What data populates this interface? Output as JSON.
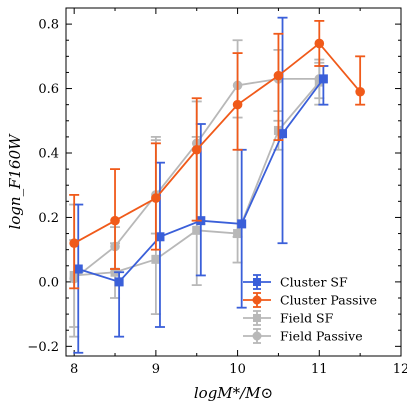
{
  "chart_data": {
    "type": "line",
    "xlabel": "logM*/M⊙",
    "ylabel": "logn_F160W",
    "xlim": [
      7.9,
      12.0
    ],
    "ylim": [
      -0.23,
      0.85
    ],
    "xticks": [
      8,
      9,
      10,
      11,
      12
    ],
    "yticks": [
      -0.2,
      0.0,
      0.2,
      0.4,
      0.6,
      0.8
    ],
    "xtick_labels": [
      "8",
      "9",
      "10",
      "11",
      "12"
    ],
    "ytick_labels": [
      "−0.2",
      "0.0",
      "0.2",
      "0.4",
      "0.6",
      "0.8"
    ],
    "legend_position": "lower-right",
    "series": [
      {
        "name": "Field SF",
        "color": "#b8b8b8",
        "marker": "square",
        "x": [
          8.0,
          8.5,
          9.0,
          9.5,
          10.0,
          10.5,
          11.0
        ],
        "y": [
          0.02,
          0.03,
          0.07,
          0.16,
          0.15,
          0.47,
          0.62
        ],
        "err_low": [
          0.19,
          0.08,
          0.17,
          0.17,
          0.09,
          0.06,
          0.05
        ],
        "err_high": [
          0.22,
          0.09,
          0.37,
          0.29,
          0.36,
          0.03,
          0.06
        ]
      },
      {
        "name": "Field Passive",
        "color": "#b8b8b8",
        "marker": "circle",
        "x": [
          8.0,
          8.5,
          9.0,
          9.5,
          10.0,
          10.5,
          11.0
        ],
        "y": [
          0.01,
          0.11,
          0.27,
          0.43,
          0.61,
          0.63,
          0.63
        ],
        "err_low": [
          0.15,
          0.08,
          0.12,
          0.24,
          0.47,
          0.1,
          0.08
        ],
        "err_high": [
          0.12,
          0.06,
          0.18,
          0.13,
          0.14,
          0.09,
          0.06
        ]
      },
      {
        "name": "Cluster SF",
        "color": "#3a5fd9",
        "marker": "square",
        "x": [
          8.05,
          8.55,
          9.05,
          9.55,
          10.05,
          10.55,
          11.05
        ],
        "y": [
          0.04,
          0.0,
          0.14,
          0.19,
          0.18,
          0.46,
          0.63
        ],
        "err_low": [
          0.26,
          0.17,
          0.28,
          0.17,
          0.26,
          0.34,
          0.08
        ],
        "err_high": [
          0.2,
          0.03,
          0.23,
          0.3,
          0.23,
          0.36,
          0.04
        ]
      },
      {
        "name": "Cluster Passive",
        "color": "#f05a1a",
        "marker": "circle",
        "x": [
          8.0,
          8.5,
          9.0,
          9.5,
          10.0,
          10.5,
          11.0,
          11.5
        ],
        "y": [
          0.12,
          0.19,
          0.26,
          0.41,
          0.55,
          0.64,
          0.74,
          0.59
        ],
        "err_low": [
          0.14,
          0.15,
          0.16,
          0.22,
          0.14,
          0.2,
          0.07,
          0.04
        ],
        "err_high": [
          0.15,
          0.16,
          0.17,
          0.16,
          0.16,
          0.13,
          0.07,
          0.11
        ]
      }
    ],
    "legend": [
      {
        "label": "Cluster SF",
        "color": "#3a5fd9",
        "marker": "square"
      },
      {
        "label": "Cluster Passive",
        "color": "#f05a1a",
        "marker": "circle"
      },
      {
        "label": "Field SF",
        "color": "#b8b8b8",
        "marker": "square"
      },
      {
        "label": "Field Passive",
        "color": "#b8b8b8",
        "marker": "circle"
      }
    ]
  }
}
